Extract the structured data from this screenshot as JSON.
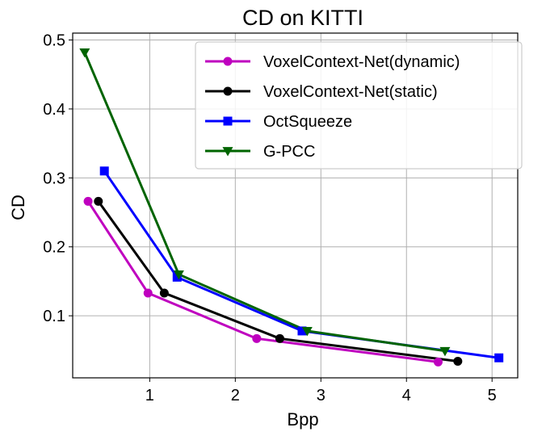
{
  "chart_data": {
    "type": "line",
    "title": "CD on KITTI",
    "xlabel": "Bpp",
    "ylabel": "CD",
    "xlim": [
      0.1,
      5.3
    ],
    "ylim": [
      0.01,
      0.51
    ],
    "xticks": [
      1,
      2,
      3,
      4,
      5
    ],
    "yticks": [
      0.1,
      0.2,
      0.3,
      0.4,
      0.5
    ],
    "xtick_labels": [
      "1",
      "2",
      "3",
      "4",
      "5"
    ],
    "ytick_labels": [
      "0.1",
      "0.2",
      "0.3",
      "0.4",
      "0.5"
    ],
    "grid": true,
    "legend_position": "top-right",
    "series": [
      {
        "name": "VoxelContext-Net(dynamic)",
        "color": "#bf00bf",
        "marker": "circle",
        "x": [
          0.28,
          0.98,
          2.25,
          4.37
        ],
        "y": [
          0.266,
          0.133,
          0.067,
          0.033
        ]
      },
      {
        "name": "VoxelContext-Net(static)",
        "color": "#000000",
        "marker": "circle",
        "x": [
          0.4,
          1.17,
          2.52,
          4.6
        ],
        "y": [
          0.266,
          0.133,
          0.067,
          0.034
        ]
      },
      {
        "name": "OctSqueeze",
        "color": "#0000ff",
        "marker": "square",
        "x": [
          0.47,
          1.32,
          2.78,
          5.08
        ],
        "y": [
          0.31,
          0.156,
          0.078,
          0.039
        ]
      },
      {
        "name": "G-PCC",
        "color": "#006400",
        "marker": "triangle-down",
        "x": [
          0.24,
          1.34,
          2.84,
          4.45
        ],
        "y": [
          0.482,
          0.16,
          0.078,
          0.049
        ]
      }
    ]
  }
}
